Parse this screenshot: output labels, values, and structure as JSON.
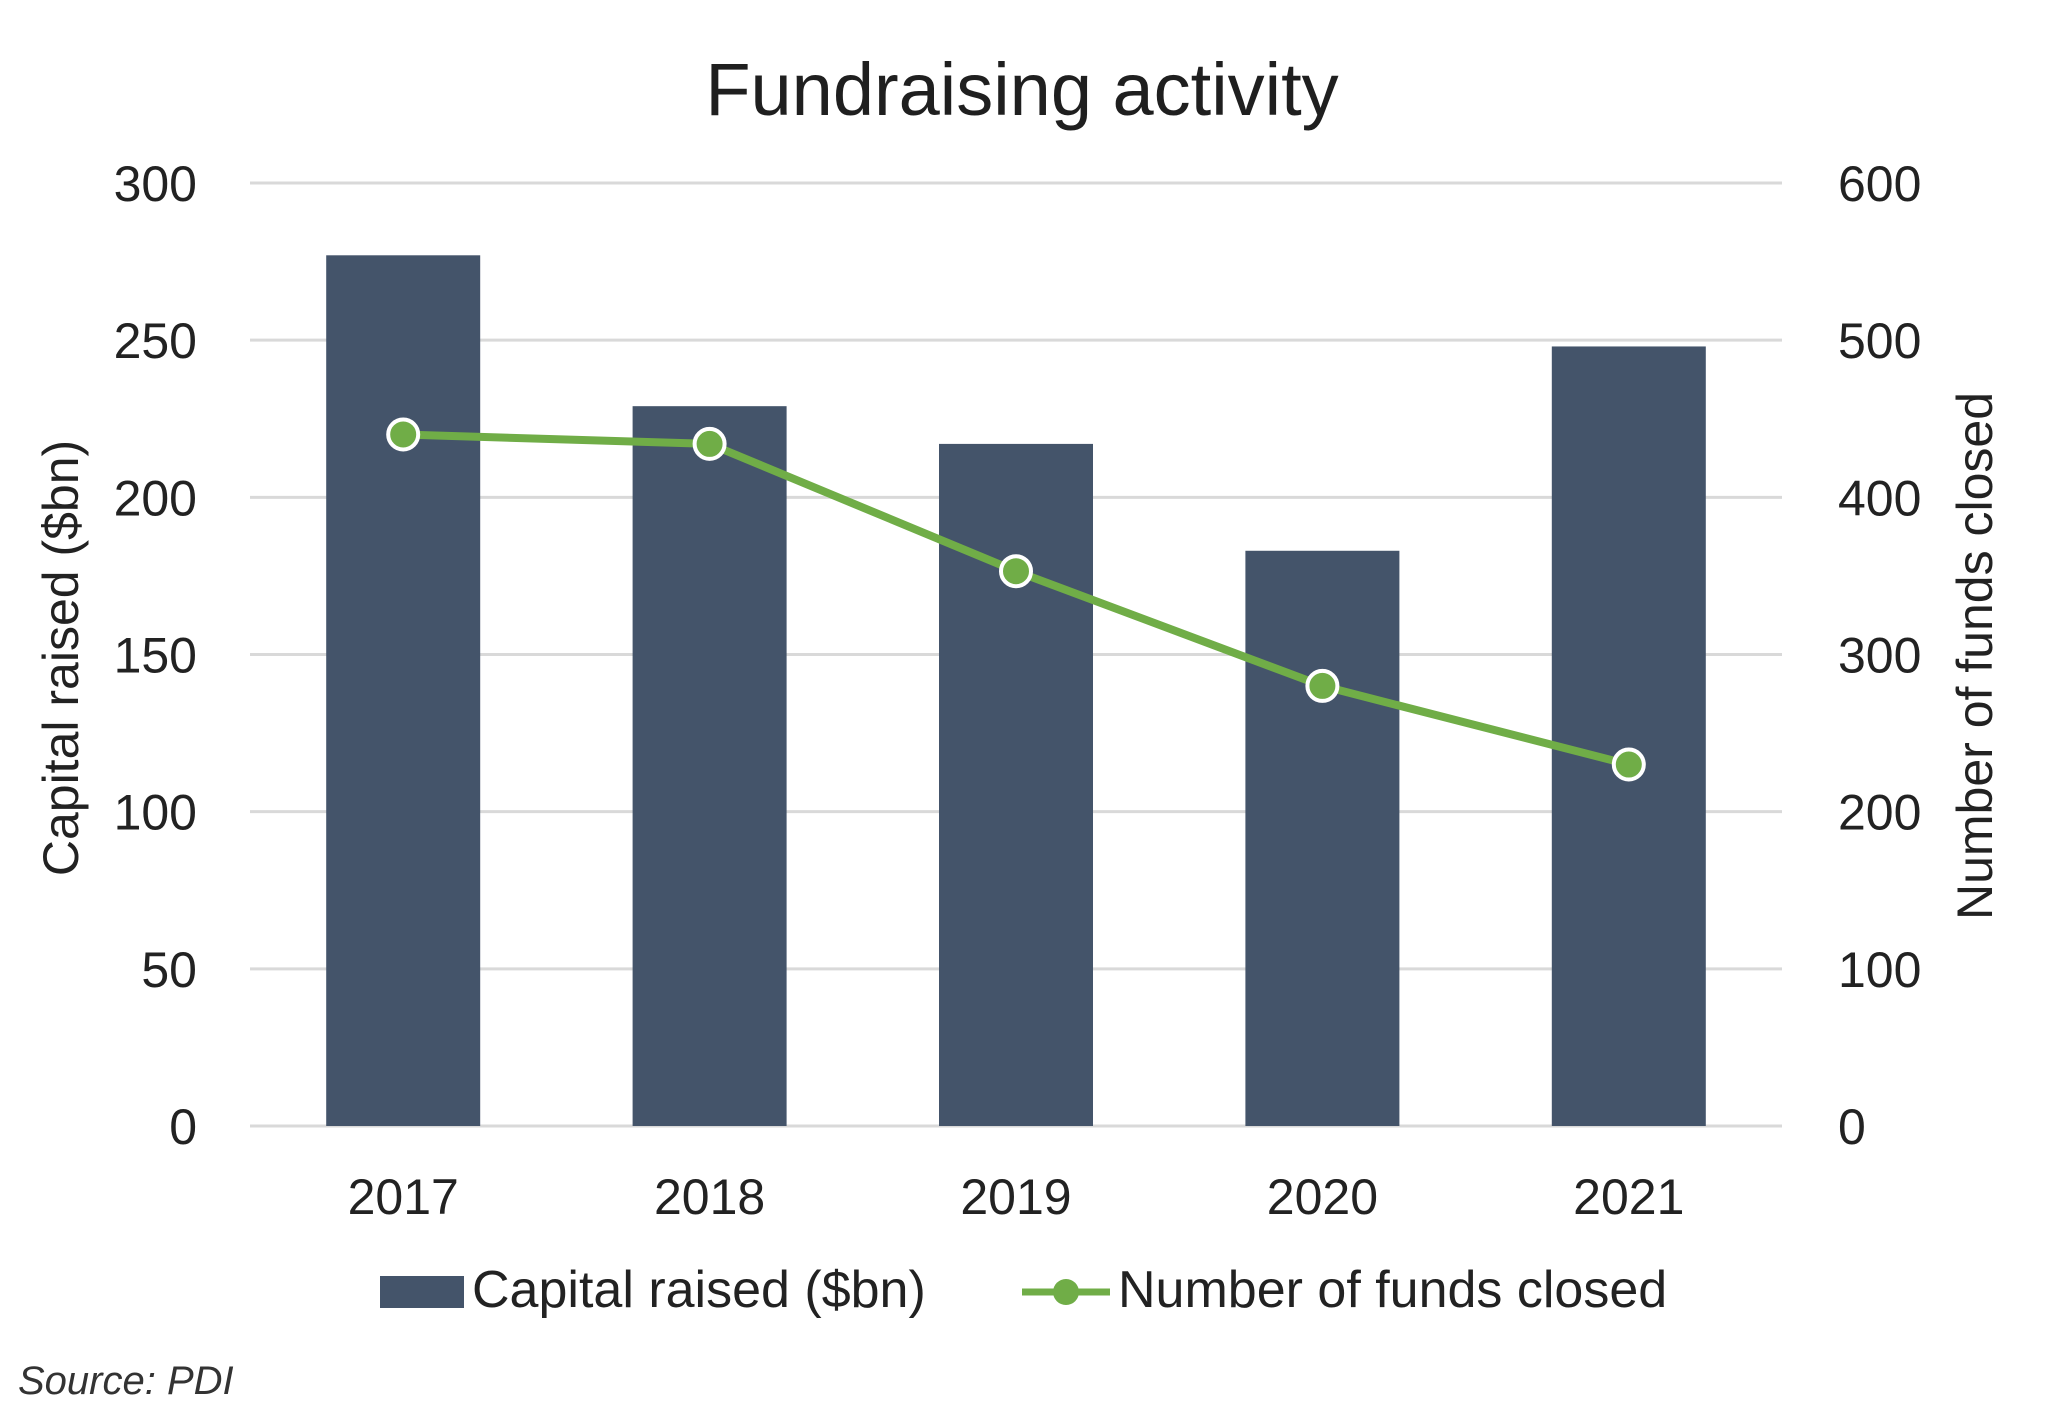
{
  "chart_data": {
    "type": "bar",
    "title": "Fundraising activity",
    "categories": [
      "2017",
      "2018",
      "2019",
      "2020",
      "2021"
    ],
    "series": [
      {
        "name": "Capital raised ($bn)",
        "type": "bar",
        "axis": "left",
        "color": "#44546a",
        "values": [
          277,
          229,
          217,
          183,
          248
        ]
      },
      {
        "name": "Number of funds closed",
        "type": "line",
        "axis": "right",
        "color": "#70ad47",
        "values": [
          440,
          434,
          353,
          280,
          230
        ]
      }
    ],
    "ylabel": "Capital raised ($bn)",
    "ylabel_right": "Number of funds closed",
    "ylim": [
      0,
      300
    ],
    "ylim_right": [
      0,
      600
    ],
    "yticks": [
      "0",
      "50",
      "100",
      "150",
      "200",
      "250",
      "300"
    ],
    "yticks_right": [
      "0",
      "100",
      "200",
      "300",
      "400",
      "500",
      "600"
    ],
    "grid": true,
    "legend_position": "bottom",
    "source": "Source: PDI"
  }
}
